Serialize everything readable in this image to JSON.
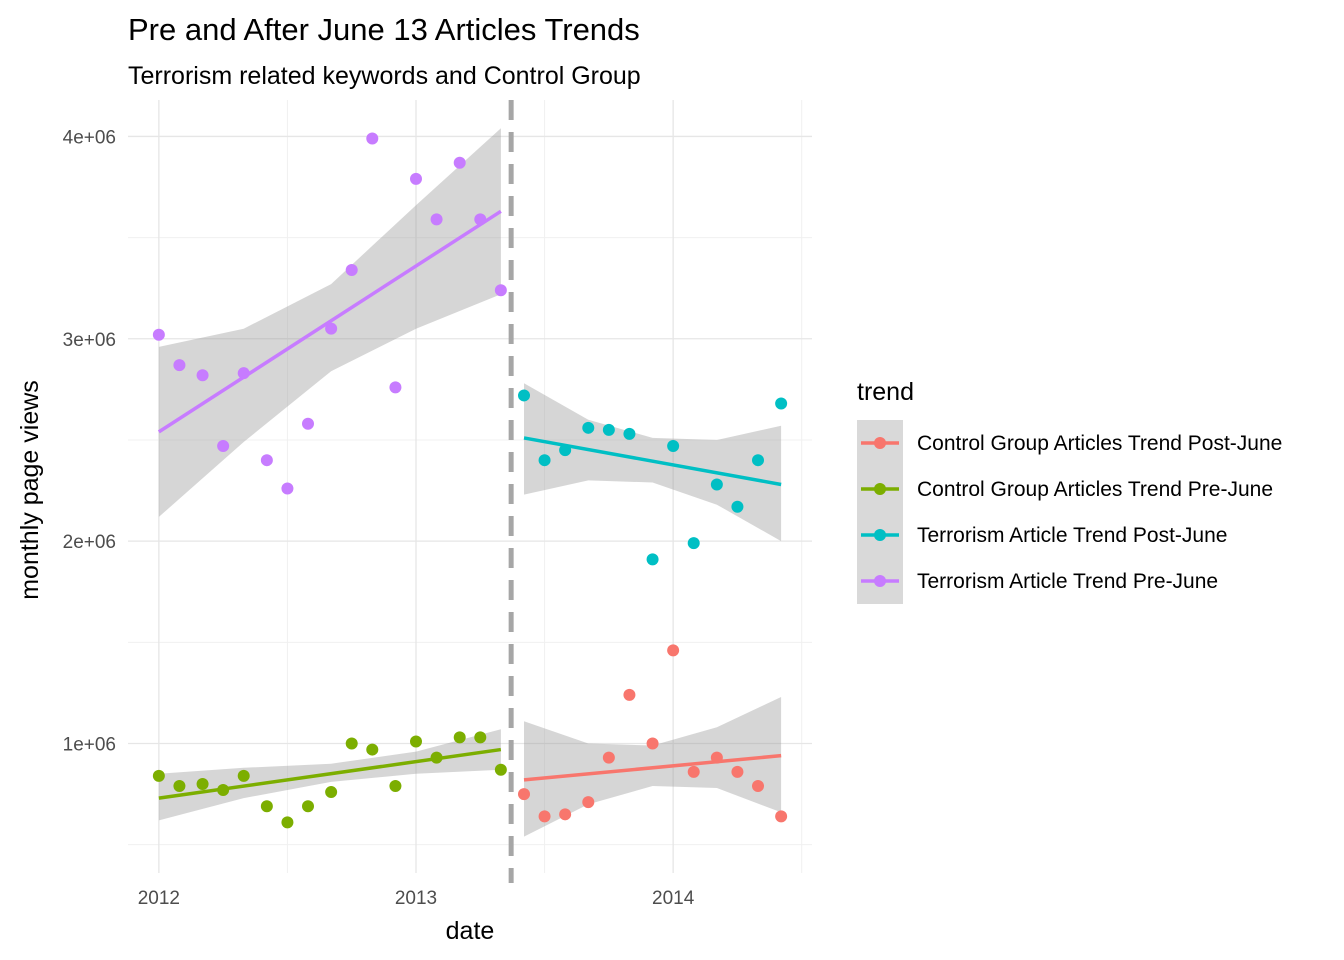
{
  "chart_data": {
    "type": "scatter",
    "title": "Pre and After June 13 Articles Trends",
    "subtitle": "Terrorism related keywords and Control Group",
    "xlabel": "date",
    "ylabel": "monthly page views",
    "x_ticks": [
      {
        "value": 2012,
        "label": "2012"
      },
      {
        "value": 2013,
        "label": "2013"
      },
      {
        "value": 2014,
        "label": "2014"
      }
    ],
    "y_ticks": [
      {
        "value": 1000000,
        "label": "1e+06"
      },
      {
        "value": 2000000,
        "label": "2e+06"
      },
      {
        "value": 3000000,
        "label": "3e+06"
      },
      {
        "value": 4000000,
        "label": "4e+06"
      }
    ],
    "xlim": [
      2011.88,
      2014.54
    ],
    "ylim": [
      360000,
      4180000
    ],
    "grid": true,
    "vline": {
      "x": 2013.37,
      "style": "dashed",
      "color": "#a6a6a6"
    },
    "legend": {
      "title": "trend",
      "position": "right"
    },
    "series": [
      {
        "name": "Control Group Articles Trend Post-June",
        "color": "#f8766d",
        "x": [
          2013.42,
          2013.5,
          2013.58,
          2013.67,
          2013.75,
          2013.83,
          2013.92,
          2014.0,
          2014.08,
          2014.17,
          2014.25,
          2014.33,
          2014.42
        ],
        "y": [
          750000,
          640000,
          650000,
          710000,
          930000,
          1240000,
          1000000,
          1460000,
          860000,
          930000,
          860000,
          790000,
          640000
        ],
        "fit": {
          "x": [
            2013.42,
            2014.42
          ],
          "y": [
            820000,
            940000
          ]
        },
        "band": {
          "x": [
            2013.42,
            2013.67,
            2013.92,
            2014.17,
            2014.42
          ],
          "lower": [
            540000,
            700000,
            790000,
            780000,
            660000
          ],
          "upper": [
            1110000,
            1000000,
            990000,
            1080000,
            1230000
          ]
        }
      },
      {
        "name": "Control Group Articles Trend Pre-June",
        "color": "#7cae00",
        "x": [
          2012.0,
          2012.08,
          2012.17,
          2012.25,
          2012.33,
          2012.42,
          2012.5,
          2012.58,
          2012.67,
          2012.75,
          2012.83,
          2012.92,
          2013.0,
          2013.08,
          2013.17,
          2013.25,
          2013.33
        ],
        "y": [
          840000,
          790000,
          800000,
          770000,
          840000,
          690000,
          610000,
          690000,
          760000,
          1000000,
          970000,
          790000,
          1010000,
          930000,
          1030000,
          1030000,
          870000
        ],
        "fit": {
          "x": [
            2012.0,
            2013.33
          ],
          "y": [
            730000,
            970000
          ]
        },
        "band": {
          "x": [
            2012.0,
            2012.33,
            2012.67,
            2013.0,
            2013.33
          ],
          "lower": [
            620000,
            730000,
            810000,
            850000,
            870000
          ],
          "upper": [
            850000,
            880000,
            900000,
            960000,
            1070000
          ]
        }
      },
      {
        "name": "Terrorism Article Trend Post-June",
        "color": "#00bfc4",
        "x": [
          2013.42,
          2013.5,
          2013.58,
          2013.67,
          2013.75,
          2013.83,
          2013.92,
          2014.0,
          2014.08,
          2014.17,
          2014.25,
          2014.33,
          2014.42
        ],
        "y": [
          2720000,
          2400000,
          2450000,
          2560000,
          2550000,
          2530000,
          1910000,
          2470000,
          1990000,
          2280000,
          2170000,
          2400000,
          2680000
        ],
        "fit": {
          "x": [
            2013.42,
            2014.42
          ],
          "y": [
            2510000,
            2280000
          ]
        },
        "band": {
          "x": [
            2013.42,
            2013.67,
            2013.92,
            2014.17,
            2014.42
          ],
          "lower": [
            2230000,
            2300000,
            2290000,
            2180000,
            2000000
          ],
          "upper": [
            2780000,
            2600000,
            2510000,
            2500000,
            2570000
          ]
        }
      },
      {
        "name": "Terrorism Article Trend Pre-June",
        "color": "#c77cff",
        "x": [
          2012.0,
          2012.08,
          2012.17,
          2012.25,
          2012.33,
          2012.42,
          2012.5,
          2012.58,
          2012.67,
          2012.75,
          2012.83,
          2012.92,
          2013.0,
          2013.08,
          2013.17,
          2013.25,
          2013.33
        ],
        "y": [
          3020000,
          2870000,
          2820000,
          2470000,
          2830000,
          2400000,
          2260000,
          2580000,
          3050000,
          3340000,
          3990000,
          2760000,
          3790000,
          3590000,
          3870000,
          3590000,
          3240000
        ],
        "fit": {
          "x": [
            2012.0,
            2013.33
          ],
          "y": [
            2540000,
            3630000
          ]
        },
        "band": {
          "x": [
            2012.0,
            2012.33,
            2012.67,
            2013.0,
            2013.33
          ],
          "lower": [
            2120000,
            2490000,
            2840000,
            3050000,
            3220000
          ],
          "upper": [
            2960000,
            3050000,
            3270000,
            3660000,
            4040000
          ]
        }
      }
    ]
  }
}
